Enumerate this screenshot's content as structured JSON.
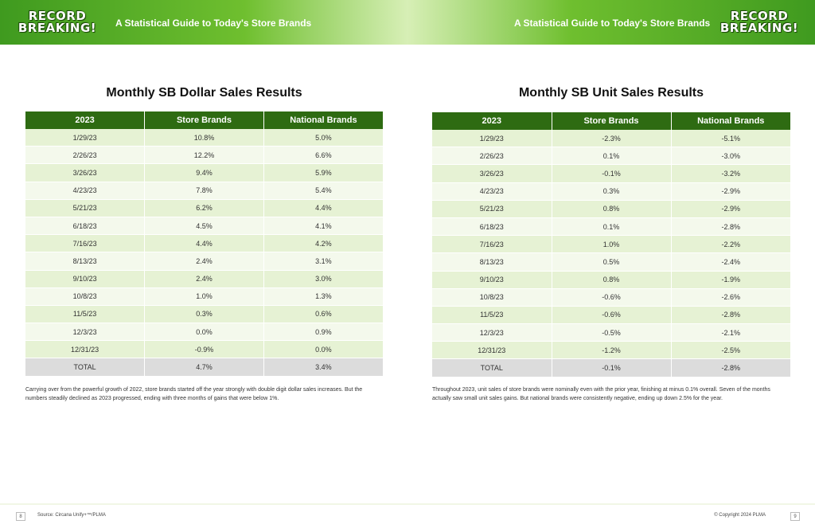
{
  "header": {
    "logo_line1": "RECORD",
    "logo_line2": "BREAKING!",
    "tagline": "A Statistical Guide to Today's Store Brands"
  },
  "dollar_table": {
    "title": "Monthly SB Dollar Sales Results",
    "columns": [
      "2023",
      "Store Brands",
      "National Brands"
    ],
    "rows": [
      [
        "1/29/23",
        "10.8%",
        "5.0%"
      ],
      [
        "2/26/23",
        "12.2%",
        "6.6%"
      ],
      [
        "3/26/23",
        "9.4%",
        "5.9%"
      ],
      [
        "4/23/23",
        "7.8%",
        "5.4%"
      ],
      [
        "5/21/23",
        "6.2%",
        "4.4%"
      ],
      [
        "6/18/23",
        "4.5%",
        "4.1%"
      ],
      [
        "7/16/23",
        "4.4%",
        "4.2%"
      ],
      [
        "8/13/23",
        "2.4%",
        "3.1%"
      ],
      [
        "9/10/23",
        "2.4%",
        "3.0%"
      ],
      [
        "10/8/23",
        "1.0%",
        "1.3%"
      ],
      [
        "11/5/23",
        "0.3%",
        "0.6%"
      ],
      [
        "12/3/23",
        "0.0%",
        "0.9%"
      ],
      [
        "12/31/23",
        "-0.9%",
        "0.0%"
      ]
    ],
    "total": [
      "TOTAL",
      "4.7%",
      "3.4%"
    ],
    "description": "Carrying over from the powerful growth of 2022, store brands started off the year strongly with double digit dollar sales increases. But the numbers steadily declined as 2023 progressed, ending with three months of gains that were below 1%."
  },
  "unit_table": {
    "title": "Monthly SB Unit Sales Results",
    "columns": [
      "2023",
      "Store Brands",
      "National Brands"
    ],
    "rows": [
      [
        "1/29/23",
        "-2.3%",
        "-5.1%"
      ],
      [
        "2/26/23",
        "0.1%",
        "-3.0%"
      ],
      [
        "3/26/23",
        "-0.1%",
        "-3.2%"
      ],
      [
        "4/23/23",
        "0.3%",
        "-2.9%"
      ],
      [
        "5/21/23",
        "0.8%",
        "-2.9%"
      ],
      [
        "6/18/23",
        "0.1%",
        "-2.8%"
      ],
      [
        "7/16/23",
        "1.0%",
        "-2.2%"
      ],
      [
        "8/13/23",
        "0.5%",
        "-2.4%"
      ],
      [
        "9/10/23",
        "0.8%",
        "-1.9%"
      ],
      [
        "10/8/23",
        "-0.6%",
        "-2.6%"
      ],
      [
        "11/5/23",
        "-0.6%",
        "-2.8%"
      ],
      [
        "12/3/23",
        "-0.5%",
        "-2.1%"
      ],
      [
        "12/31/23",
        "-1.2%",
        "-2.5%"
      ]
    ],
    "total": [
      "TOTAL",
      "-0.1%",
      "-2.8%"
    ],
    "description": "Throughout 2023, unit sales of store brands were nominally even with the prior year, finishing at minus 0.1% overall. Seven of the months actually saw small unit sales gains. But national brands were consistently negative, ending up down 2.5% for the year."
  },
  "footer": {
    "page_left": "8",
    "page_right": "9",
    "source": "Source: Circana Unify+™/PLMA",
    "copyright": "© Copyright 2024 PLMA"
  },
  "colors": {
    "header_green": "#2e6b12",
    "banner_green": "#6fbf2f"
  }
}
